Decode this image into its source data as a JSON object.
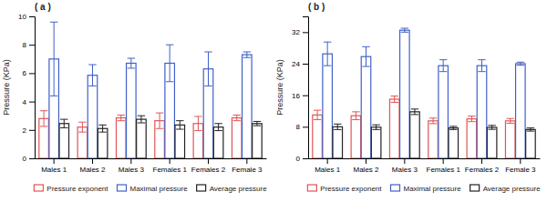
{
  "chart_data": [
    {
      "type": "bar",
      "title": "( a )",
      "y_label": "Pressure (KPa)",
      "categories": [
        "Males 1",
        "Males 2",
        "Males 3",
        "Females 1",
        "Females 2",
        "Female 3"
      ],
      "series": [
        {
          "name": "Pressure exponent",
          "color": "#e05555",
          "values": [
            2.8,
            2.2,
            2.85,
            2.65,
            2.45,
            2.85
          ],
          "errors": [
            0.55,
            0.35,
            0.2,
            0.55,
            0.5,
            0.2
          ]
        },
        {
          "name": "Maximal pressure",
          "color": "#4060c8",
          "values": [
            7.0,
            5.85,
            6.7,
            6.7,
            6.3,
            7.3
          ],
          "errors": [
            2.6,
            0.75,
            0.35,
            1.3,
            1.2,
            0.2
          ]
        },
        {
          "name": "Average pressure",
          "color": "#222222",
          "values": [
            2.45,
            2.1,
            2.75,
            2.35,
            2.2,
            2.45
          ],
          "errors": [
            0.3,
            0.25,
            0.25,
            0.3,
            0.25,
            0.15
          ]
        }
      ],
      "ylim": [
        0,
        10
      ],
      "yticks": [
        0,
        2,
        4,
        6,
        8,
        10
      ],
      "grid": false,
      "legend": "bottom"
    },
    {
      "type": "bar",
      "title": "( b )",
      "y_label": "Pressure (KPa)",
      "categories": [
        "Males 1",
        "Males 2",
        "Males 3",
        "Females 1",
        "Females 2",
        "Female 3"
      ],
      "series": [
        {
          "name": "Pressure exponent",
          "color": "#e05555",
          "values": [
            11.0,
            10.8,
            15.0,
            9.5,
            10.0,
            9.5
          ],
          "errors": [
            1.2,
            1.0,
            0.8,
            0.7,
            0.7,
            0.6
          ]
        },
        {
          "name": "Maximal pressure",
          "color": "#4060c8",
          "values": [
            26.5,
            25.8,
            32.5,
            23.5,
            23.5,
            24.0
          ],
          "errors": [
            3.0,
            2.5,
            0.5,
            1.5,
            1.5,
            0.4
          ]
        },
        {
          "name": "Average pressure",
          "color": "#222222",
          "values": [
            8.0,
            7.9,
            11.8,
            7.7,
            7.85,
            7.3
          ],
          "errors": [
            0.7,
            0.6,
            0.7,
            0.4,
            0.5,
            0.4
          ]
        }
      ],
      "ylim": [
        0,
        36
      ],
      "yticks": [
        0,
        8,
        16,
        24,
        32
      ],
      "grid": false,
      "legend": "bottom"
    }
  ]
}
